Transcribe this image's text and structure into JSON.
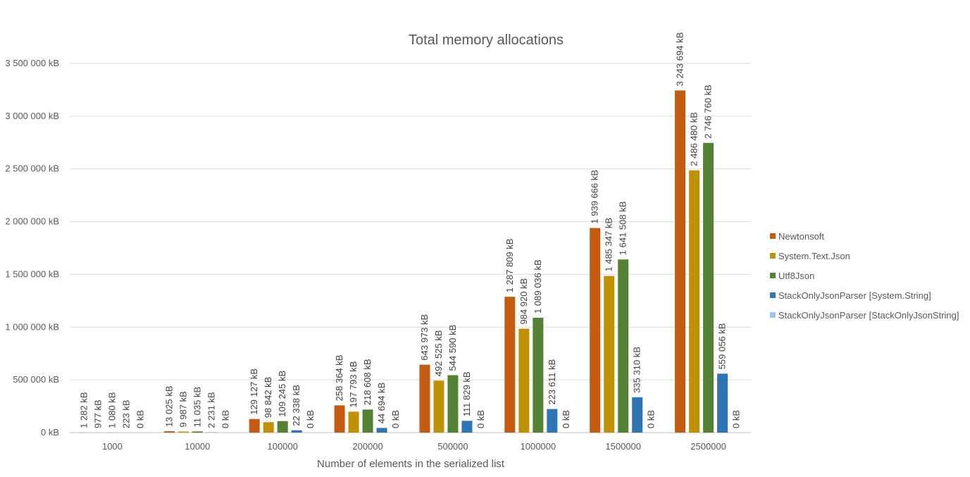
{
  "chart_data": {
    "type": "bar",
    "title": "Total memory allocations",
    "xlabel": "Number of elements in the serialized list",
    "ylabel": "",
    "categories": [
      "1000",
      "10000",
      "100000",
      "200000",
      "500000",
      "1000000",
      "1500000",
      "2500000"
    ],
    "ylim": [
      0,
      3500000
    ],
    "y_ticks": [
      0,
      500000,
      1000000,
      1500000,
      2000000,
      2500000,
      3000000,
      3500000
    ],
    "y_tick_labels": [
      "0 kB",
      "500 000 kB",
      "1 000 000 kB",
      "1 500 000 kB",
      "2 000 000 kB",
      "2 500 000 kB",
      "3 000 000 kB",
      "3 500 000 kB"
    ],
    "grid": true,
    "legend_position": "right",
    "series": [
      {
        "name": "Newtonsoft",
        "color": "#C55A11",
        "values": [
          1282,
          13025,
          129127,
          258364,
          643973,
          1287809,
          1939666,
          3243694
        ],
        "labels": [
          "1 282 kB",
          "13 025 kB",
          "129 127 kB",
          "258 364 kB",
          "643 973 kB",
          "1 287 809 kB",
          "1 939 666 kB",
          "3 243 694 kB"
        ]
      },
      {
        "name": "System.Text.Json",
        "color": "#BF9000",
        "values": [
          977,
          9987,
          98842,
          197793,
          492525,
          984920,
          1485347,
          2486480
        ],
        "labels": [
          "977 kB",
          "9 987 kB",
          "98 842 kB",
          "197 793 kB",
          "492 525 kB",
          "984 920 kB",
          "1 485 347 kB",
          "2 486 480 kB"
        ]
      },
      {
        "name": "Utf8Json",
        "color": "#548235",
        "values": [
          1080,
          11035,
          109245,
          218608,
          544590,
          1089036,
          1641508,
          2746760
        ],
        "labels": [
          "1 080 kB",
          "11 035 kB",
          "109 245 kB",
          "218 608 kB",
          "544 590 kB",
          "1 089 036 kB",
          "1 641 508 kB",
          "2 746 760 kB"
        ]
      },
      {
        "name": "StackOnlyJsonParser [System.String]",
        "color": "#2E75B6",
        "values": [
          223,
          2231,
          22338,
          44694,
          111829,
          223611,
          335310,
          559056
        ],
        "labels": [
          "223 kB",
          "2 231 kB",
          "22 338 kB",
          "44 694 kB",
          "111 829 kB",
          "223 611 kB",
          "335 310 kB",
          "559 056 kB"
        ]
      },
      {
        "name": "StackOnlyJsonParser [StackOnlyJsonString]",
        "color": "#9DC3E6",
        "values": [
          0,
          0,
          0,
          0,
          0,
          0,
          0,
          0
        ],
        "labels": [
          "0 kB",
          "0 kB",
          "0 kB",
          "0 kB",
          "0 kB",
          "0 kB",
          "0 kB",
          "0 kB"
        ]
      }
    ]
  }
}
